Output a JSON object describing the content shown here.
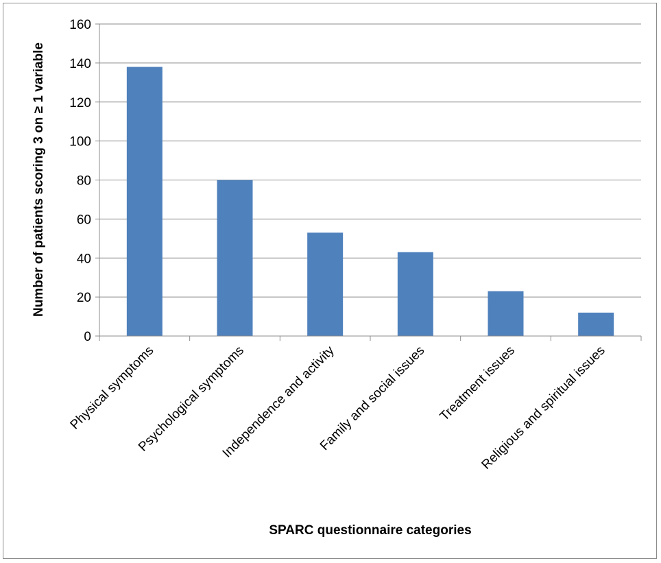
{
  "chart_data": {
    "type": "bar",
    "categories": [
      "Physical symptoms",
      "Psychological symptoms",
      "Independence and activity",
      "Family and social issues",
      "Treatment issues",
      "Religious and spiritual issues"
    ],
    "values": [
      138,
      80,
      53,
      43,
      23,
      12
    ],
    "title": "",
    "xlabel": "SPARC questionnaire categories",
    "ylabel": "Number of patients scoring 3 on ≥ 1 variable",
    "ylim": [
      0,
      160
    ],
    "yticks": [
      0,
      20,
      40,
      60,
      80,
      100,
      120,
      140,
      160
    ],
    "grid": true,
    "legend": "none",
    "bar_color": "#4f81bd",
    "grid_color": "#8c8c8c"
  }
}
